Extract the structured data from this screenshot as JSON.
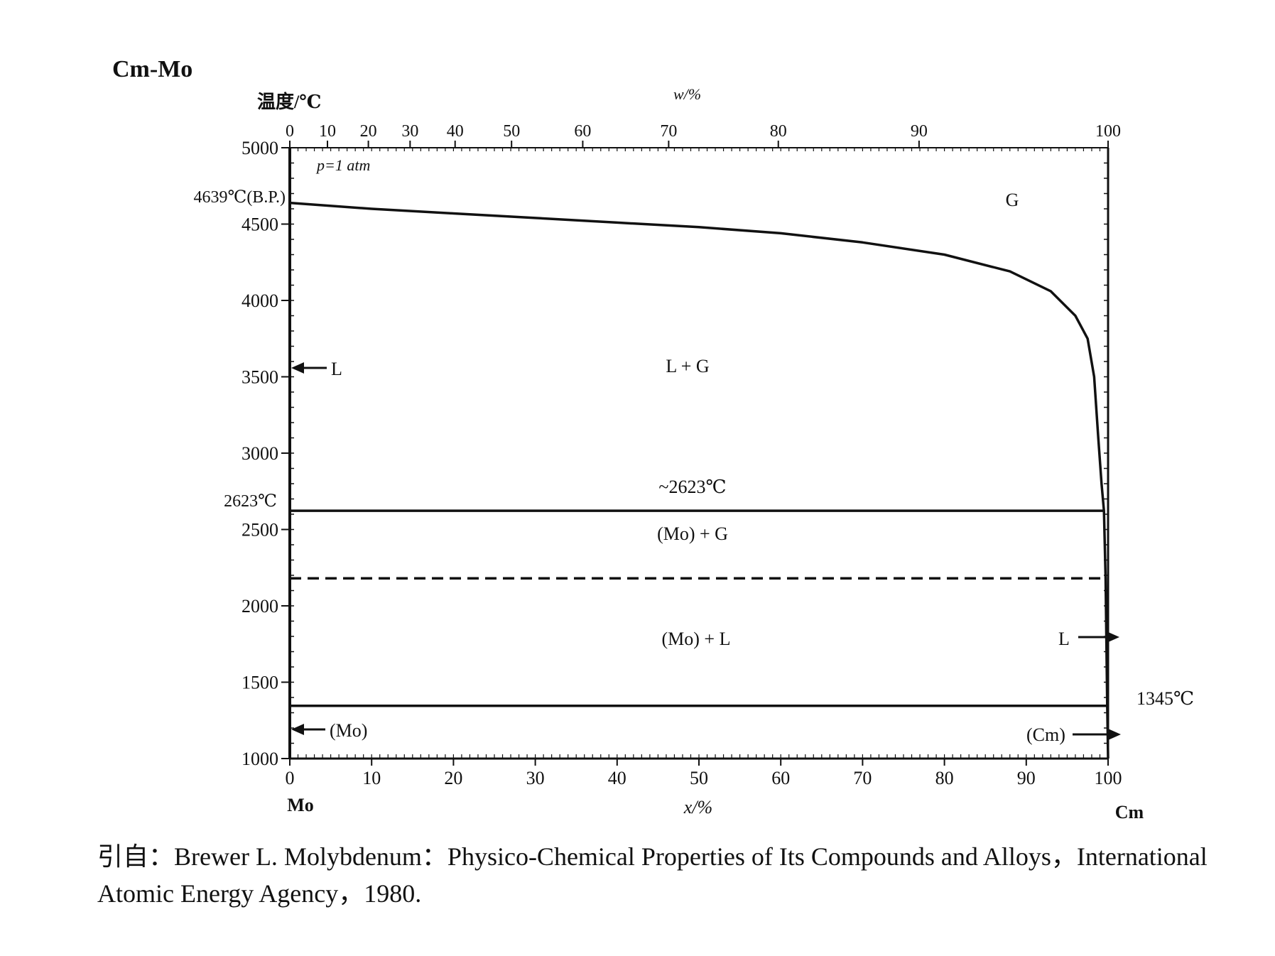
{
  "chart_data": {
    "type": "line",
    "title": "Cm-Mo",
    "ylabel": "温度/℃",
    "xlabel": "x/%",
    "top_xlabel": "w/%",
    "ylim": [
      1000,
      5000
    ],
    "xlim": [
      0,
      100
    ],
    "y_ticks": [
      "1000",
      "1500",
      "2000",
      "2500",
      "3000",
      "3500",
      "4000",
      "4500",
      "5000"
    ],
    "x_ticks": [
      "0",
      "10",
      "20",
      "30",
      "40",
      "50",
      "60",
      "70",
      "80",
      "90",
      "100"
    ],
    "top_ticks": [
      {
        "label": "0",
        "x": 0
      },
      {
        "label": "10",
        "x": 4.6
      },
      {
        "label": "20",
        "x": 9.6
      },
      {
        "label": "30",
        "x": 14.7
      },
      {
        "label": "40",
        "x": 20.2
      },
      {
        "label": "50",
        "x": 27.1
      },
      {
        "label": "60",
        "x": 35.8
      },
      {
        "label": "70",
        "x": 46.3
      },
      {
        "label": "80",
        "x": 59.7
      },
      {
        "label": "90",
        "x": 76.9
      },
      {
        "label": "100",
        "x": 100
      }
    ],
    "left_element": "Mo",
    "right_element": "Cm",
    "pressure": "p=1 atm",
    "series": [
      {
        "style": "solid",
        "points": [
          [
            0,
            4639
          ],
          [
            10,
            4600
          ],
          [
            20,
            4570
          ],
          [
            30,
            4540
          ],
          [
            40,
            4510
          ],
          [
            50,
            4480
          ],
          [
            60,
            4440
          ],
          [
            70,
            4380
          ],
          [
            80,
            4300
          ],
          [
            88,
            4190
          ],
          [
            93,
            4060
          ],
          [
            96,
            3900
          ],
          [
            97.5,
            3750
          ],
          [
            98.3,
            3500
          ],
          [
            98.8,
            3100
          ],
          [
            99.2,
            2800
          ],
          [
            99.5,
            2623
          ]
        ]
      },
      {
        "style": "solid",
        "points": [
          [
            0,
            2623
          ],
          [
            99.5,
            2623
          ]
        ]
      },
      {
        "style": "dashed",
        "points": [
          [
            0,
            2180
          ],
          [
            99.6,
            2180
          ]
        ]
      },
      {
        "style": "solid",
        "points": [
          [
            0,
            1345
          ],
          [
            100,
            1345
          ]
        ]
      },
      {
        "style": "solid",
        "points": [
          [
            99.5,
            2623
          ],
          [
            99.7,
            2180
          ],
          [
            99.9,
            1345
          ],
          [
            100,
            1000
          ]
        ]
      }
    ],
    "annotations": {
      "bp_label": "4639℃(B.P.)",
      "eutectic_left_label": "2623℃",
      "eutectic_center_label": "~2623℃",
      "right_temp_label": "1345℃",
      "region_g": "G",
      "region_lg": "L + G",
      "region_mo_g": "(Mo) + G",
      "region_mo_l": "(Mo) + L",
      "arrow_l_left": "L",
      "arrow_l_right": "L",
      "arrow_mo": "(Mo)",
      "arrow_cm": "(Cm)"
    }
  },
  "caption": {
    "line1": "引自：Brewer L.  Molybdenum：Physico-Chemical Properties of Its Compounds and Alloys，International",
    "line2": "Atomic Energy Agency，1980."
  }
}
